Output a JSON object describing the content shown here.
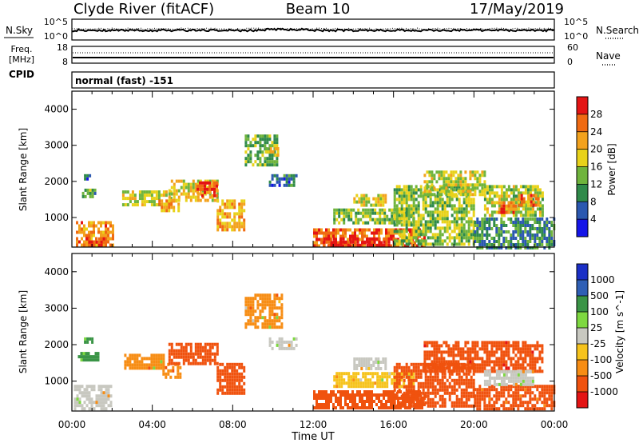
{
  "header": {
    "station": "Clyde River (fitACF)",
    "beam": "Beam 10",
    "date": "17/May/2019"
  },
  "noise_panel": {
    "left_label": "N.Sky",
    "right_label": "N.Search",
    "left_ticks": [
      "10^5",
      "10^0"
    ],
    "right_ticks": [
      "10^5",
      "10^0"
    ]
  },
  "freq_panel": {
    "left_label_1": "Freq.",
    "left_label_2": "[MHz]",
    "cpid_label": "CPID",
    "right_label": "Nave",
    "left_ticks": [
      "18",
      "8"
    ],
    "right_ticks": [
      "60",
      "0"
    ],
    "cpid_text": "normal (fast) -151"
  },
  "time_axis": {
    "xlabel": "Time UT",
    "ticks": [
      "00:00",
      "04:00",
      "08:00",
      "12:00",
      "16:00",
      "20:00",
      "00:00"
    ]
  },
  "colors": {
    "power": [
      "#1515e8",
      "#2b58b0",
      "#2f8a4a",
      "#6fb43c",
      "#e8d21a",
      "#f3a21d",
      "#f06a12",
      "#e41414"
    ],
    "velocity": [
      "#e41414",
      "#f0520e",
      "#f78d14",
      "#f6c31c",
      "#c8c8c0",
      "#7ed840",
      "#3a9446",
      "#2f5fb5",
      "#1b2fc6"
    ]
  },
  "chart_data": [
    {
      "type": "heatmap",
      "title": "Power",
      "ylabel": "Slant Range [km]",
      "xlabel": "",
      "ylim": [
        180,
        4500
      ],
      "yticks": [
        "1000",
        "2000",
        "3000",
        "4000"
      ],
      "x_range_hours": [
        0,
        24
      ],
      "colorbar": {
        "label": "Power [dB]",
        "range": [
          0,
          32
        ],
        "ticks": [
          "4",
          "8",
          "12",
          "16",
          "20",
          "24",
          "28"
        ]
      },
      "regions": [
        {
          "t0": 0.2,
          "t1": 2.0,
          "r0": 200,
          "r1": 900,
          "power": 24
        },
        {
          "t0": 0.7,
          "t1": 1.6,
          "r0": 200,
          "r1": 450,
          "power": 30
        },
        {
          "t0": 0.5,
          "t1": 1.2,
          "r0": 1600,
          "r1": 1800,
          "power": 12
        },
        {
          "t0": 0.6,
          "t1": 1.0,
          "r0": 2050,
          "r1": 2200,
          "power": 6
        },
        {
          "t0": 2.5,
          "t1": 5.0,
          "r0": 1350,
          "r1": 1750,
          "power": 17
        },
        {
          "t0": 4.3,
          "t1": 5.3,
          "r0": 1150,
          "r1": 1500,
          "power": 22
        },
        {
          "t0": 4.8,
          "t1": 7.3,
          "r0": 1500,
          "r1": 2050,
          "power": 19
        },
        {
          "t0": 6.2,
          "t1": 7.2,
          "r0": 1600,
          "r1": 2000,
          "power": 28
        },
        {
          "t0": 7.2,
          "t1": 8.6,
          "r0": 700,
          "r1": 1500,
          "power": 21
        },
        {
          "t0": 8.6,
          "t1": 10.2,
          "r0": 2500,
          "r1": 3300,
          "power": 13
        },
        {
          "t0": 9.6,
          "t1": 10.3,
          "r0": 2700,
          "r1": 2950,
          "power": 20
        },
        {
          "t0": 9.8,
          "t1": 11.2,
          "r0": 1900,
          "r1": 2200,
          "power": 8
        },
        {
          "t0": 12.0,
          "t1": 17.6,
          "r0": 200,
          "r1": 700,
          "power": 26
        },
        {
          "t0": 12.5,
          "t1": 16.0,
          "r0": 200,
          "r1": 450,
          "power": 30
        },
        {
          "t0": 13.0,
          "t1": 17.0,
          "r0": 850,
          "r1": 1250,
          "power": 14
        },
        {
          "t0": 14.0,
          "t1": 15.6,
          "r0": 1350,
          "r1": 1650,
          "power": 18
        },
        {
          "t0": 16.0,
          "t1": 20.0,
          "r0": 300,
          "r1": 1900,
          "power": 15
        },
        {
          "t0": 17.5,
          "t1": 20.5,
          "r0": 1600,
          "r1": 2300,
          "power": 17
        },
        {
          "t0": 20.5,
          "t1": 23.4,
          "r0": 1050,
          "r1": 1900,
          "power": 16
        },
        {
          "t0": 21.2,
          "t1": 22.1,
          "r0": 1150,
          "r1": 1450,
          "power": 26
        },
        {
          "t0": 22.2,
          "t1": 23.2,
          "r0": 1300,
          "r1": 1650,
          "power": 24
        },
        {
          "t0": 20.0,
          "t1": 24.0,
          "r0": 200,
          "r1": 1000,
          "power": 10
        }
      ]
    },
    {
      "type": "heatmap",
      "title": "Velocity",
      "ylabel": "Slant Range [km]",
      "xlabel": "Time UT",
      "ylim": [
        180,
        4500
      ],
      "yticks": [
        "1000",
        "2000",
        "3000",
        "4000"
      ],
      "x_range_hours": [
        0,
        24
      ],
      "colorbar": {
        "label": "Velocity [m s^-1]",
        "range": [
          -1000,
          1000
        ],
        "ticks": [
          "1000",
          "500",
          "100",
          "25",
          "-25",
          "-100",
          "-500",
          "-1000"
        ]
      },
      "regions": [
        {
          "t0": 0.1,
          "t1": 2.0,
          "r0": 200,
          "r1": 900,
          "vel": 0
        },
        {
          "t0": 0.3,
          "t1": 1.3,
          "r0": 1600,
          "r1": 1800,
          "vel": 150
        },
        {
          "t0": 0.6,
          "t1": 1.0,
          "r0": 2050,
          "r1": 2200,
          "vel": 150
        },
        {
          "t0": 2.6,
          "t1": 4.6,
          "r0": 1350,
          "r1": 1750,
          "vel": -30
        },
        {
          "t0": 4.5,
          "t1": 5.4,
          "r0": 1100,
          "r1": 1500,
          "vel": -60
        },
        {
          "t0": 4.8,
          "t1": 7.3,
          "r0": 1500,
          "r1": 2050,
          "vel": -200
        },
        {
          "t0": 7.2,
          "t1": 8.6,
          "r0": 700,
          "r1": 1500,
          "vel": -300
        },
        {
          "t0": 8.6,
          "t1": 10.4,
          "r0": 2500,
          "r1": 3400,
          "vel": -40
        },
        {
          "t0": 9.8,
          "t1": 11.2,
          "r0": 1900,
          "r1": 2200,
          "vel": 0
        },
        {
          "t0": 12.0,
          "t1": 17.5,
          "r0": 300,
          "r1": 750,
          "vel": -300
        },
        {
          "t0": 13.0,
          "t1": 17.0,
          "r0": 850,
          "r1": 1250,
          "vel": -10
        },
        {
          "t0": 14.0,
          "t1": 15.6,
          "r0": 1350,
          "r1": 1650,
          "vel": 0
        },
        {
          "t0": 16.0,
          "t1": 20.0,
          "r0": 300,
          "r1": 1500,
          "vel": -200
        },
        {
          "t0": 17.5,
          "t1": 23.4,
          "r0": 1300,
          "r1": 2100,
          "vel": -450
        },
        {
          "t0": 20.0,
          "t1": 24.0,
          "r0": 250,
          "r1": 900,
          "vel": -150
        },
        {
          "t0": 20.5,
          "t1": 23.0,
          "r0": 900,
          "r1": 1300,
          "vel": 0
        }
      ]
    }
  ]
}
